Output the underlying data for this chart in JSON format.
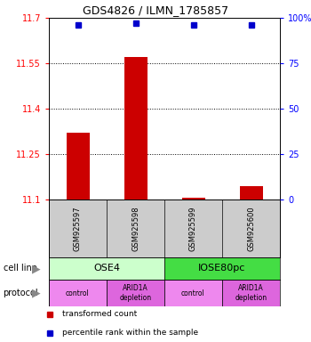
{
  "title": "GDS4826 / ILMN_1785857",
  "samples": [
    "GSM925597",
    "GSM925598",
    "GSM925599",
    "GSM925600"
  ],
  "bar_values": [
    11.32,
    11.57,
    11.105,
    11.145
  ],
  "bar_base": 11.1,
  "percentile_values": [
    96,
    97,
    96,
    96
  ],
  "ylim_left": [
    11.1,
    11.7
  ],
  "ylim_right": [
    0,
    100
  ],
  "yticks_left": [
    11.1,
    11.25,
    11.4,
    11.55,
    11.7
  ],
  "yticks_right": [
    0,
    25,
    50,
    75,
    100
  ],
  "ytick_labels_left": [
    "11.1",
    "11.25",
    "11.4",
    "11.55",
    "11.7"
  ],
  "ytick_labels_right": [
    "0",
    "25",
    "50",
    "75",
    "100%"
  ],
  "bar_color": "#cc0000",
  "dot_color": "#0000cc",
  "cell_line_labels": [
    "OSE4",
    "IOSE80pc"
  ],
  "cell_line_spans": [
    [
      0,
      2
    ],
    [
      2,
      4
    ]
  ],
  "cell_line_colors": [
    "#ccffcc",
    "#44dd44"
  ],
  "protocol_labels": [
    "control",
    "ARID1A\ndepletion",
    "control",
    "ARID1A\ndepletion"
  ],
  "protocol_colors": [
    "#ee88ee",
    "#dd66dd",
    "#ee88ee",
    "#dd66dd"
  ],
  "sample_box_color": "#cccccc",
  "bg_color": "#ffffff",
  "legend_red_label": "transformed count",
  "legend_blue_label": "percentile rank within the sample"
}
